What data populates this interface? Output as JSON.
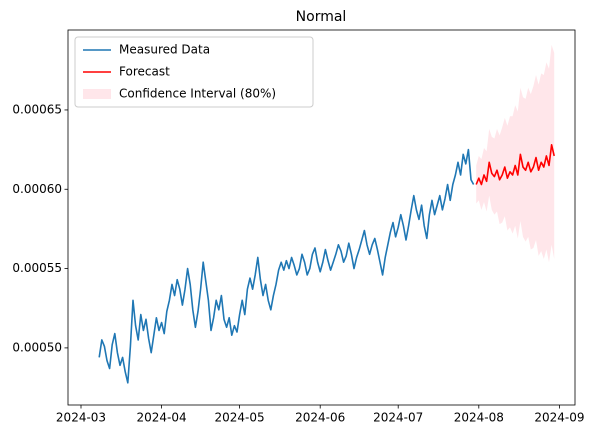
{
  "chart_data": {
    "type": "line",
    "title": "Normal",
    "xlim": [
      19778,
      19973
    ],
    "xticks": [
      {
        "value": 19783,
        "label": "2024-03"
      },
      {
        "value": 19814,
        "label": "2024-04"
      },
      {
        "value": 19844,
        "label": "2024-05"
      },
      {
        "value": 19875,
        "label": "2024-06"
      },
      {
        "value": 19905,
        "label": "2024-07"
      },
      {
        "value": 19936,
        "label": "2024-08"
      },
      {
        "value": 19967,
        "label": "2024-09"
      }
    ],
    "ylim": [
      0.000464,
      0.0007004
    ],
    "yticks": [
      {
        "value": 0.0005,
        "label": "0.00050"
      },
      {
        "value": 0.00055,
        "label": "0.00055"
      },
      {
        "value": 0.0006,
        "label": "0.00060"
      },
      {
        "value": 0.00065,
        "label": "0.00065"
      }
    ],
    "legend": "upper left",
    "series": [
      {
        "name": "Measured Data",
        "color": "#1f77b4",
        "x": [
          19790,
          19791,
          19792,
          19793,
          19794,
          19795,
          19796,
          19797,
          19798,
          19799,
          19800,
          19801,
          19802,
          19803,
          19804,
          19805,
          19806,
          19807,
          19808,
          19809,
          19810,
          19811,
          19812,
          19813,
          19814,
          19815,
          19816,
          19817,
          19818,
          19819,
          19820,
          19821,
          19822,
          19823,
          19824,
          19825,
          19826,
          19827,
          19828,
          19829,
          19830,
          19831,
          19832,
          19833,
          19834,
          19835,
          19836,
          19837,
          19838,
          19839,
          19840,
          19841,
          19842,
          19843,
          19844,
          19845,
          19846,
          19847,
          19848,
          19849,
          19850,
          19851,
          19852,
          19853,
          19854,
          19855,
          19856,
          19857,
          19858,
          19859,
          19860,
          19861,
          19862,
          19863,
          19864,
          19865,
          19866,
          19867,
          19868,
          19869,
          19870,
          19871,
          19872,
          19873,
          19874,
          19875,
          19876,
          19877,
          19878,
          19879,
          19880,
          19881,
          19882,
          19883,
          19884,
          19885,
          19886,
          19887,
          19888,
          19889,
          19890,
          19891,
          19892,
          19893,
          19894,
          19895,
          19896,
          19897,
          19898,
          19899,
          19900,
          19901,
          19902,
          19903,
          19904,
          19905,
          19906,
          19907,
          19908,
          19909,
          19910,
          19911,
          19912,
          19913,
          19914,
          19915,
          19916,
          19917,
          19918,
          19919,
          19920,
          19921,
          19922,
          19923,
          19924,
          19925,
          19926,
          19927,
          19928,
          19929,
          19930,
          19931,
          19932,
          19933,
          19934
        ],
        "values": [
          0.000494,
          0.000505,
          0.000501,
          0.000492,
          0.000487,
          0.000502,
          0.000509,
          0.000497,
          0.000489,
          0.000494,
          0.000485,
          0.000478,
          0.000501,
          0.00053,
          0.000514,
          0.000505,
          0.000521,
          0.000511,
          0.000518,
          0.000506,
          0.000497,
          0.000508,
          0.000519,
          0.000511,
          0.000516,
          0.000509,
          0.000523,
          0.00053,
          0.00054,
          0.000533,
          0.000543,
          0.000537,
          0.000527,
          0.000537,
          0.00055,
          0.00054,
          0.000524,
          0.000513,
          0.000523,
          0.000537,
          0.000554,
          0.000542,
          0.00053,
          0.000511,
          0.000519,
          0.00053,
          0.000524,
          0.000533,
          0.000518,
          0.000513,
          0.000519,
          0.000508,
          0.000514,
          0.00051,
          0.000521,
          0.00053,
          0.000521,
          0.000537,
          0.000544,
          0.000537,
          0.000546,
          0.000557,
          0.000543,
          0.000533,
          0.00054,
          0.00053,
          0.000524,
          0.000533,
          0.00054,
          0.000549,
          0.000554,
          0.000549,
          0.000555,
          0.00055,
          0.000557,
          0.000552,
          0.000546,
          0.00055,
          0.000559,
          0.000554,
          0.000546,
          0.00055,
          0.000559,
          0.000563,
          0.000554,
          0.000548,
          0.000554,
          0.000562,
          0.000555,
          0.000549,
          0.000554,
          0.000559,
          0.000565,
          0.000561,
          0.000554,
          0.000558,
          0.000566,
          0.000559,
          0.00055,
          0.000557,
          0.000562,
          0.000568,
          0.000574,
          0.000565,
          0.000559,
          0.000565,
          0.000569,
          0.000562,
          0.000554,
          0.000546,
          0.000557,
          0.000565,
          0.000573,
          0.000579,
          0.00057,
          0.000576,
          0.000584,
          0.000577,
          0.000568,
          0.000577,
          0.000587,
          0.000596,
          0.000587,
          0.000581,
          0.00059,
          0.000577,
          0.000569,
          0.000584,
          0.000593,
          0.000584,
          0.00059,
          0.000596,
          0.000587,
          0.000594,
          0.000603,
          0.000593,
          0.000603,
          0.000609,
          0.000617,
          0.000609,
          0.000622,
          0.000616,
          0.000625,
          0.000606,
          0.000603
        ]
      },
      {
        "name": "Forecast",
        "color": "#ff0000",
        "x": [
          19935,
          19936,
          19937,
          19938,
          19939,
          19940,
          19941,
          19942,
          19943,
          19944,
          19945,
          19946,
          19947,
          19948,
          19949,
          19950,
          19951,
          19952,
          19953,
          19954,
          19955,
          19956,
          19957,
          19958,
          19959,
          19960,
          19961,
          19962,
          19963,
          19964,
          19965
        ],
        "values": [
          0.000603,
          0.000607,
          0.000603,
          0.000609,
          0.000605,
          0.000617,
          0.00061,
          0.000608,
          0.000612,
          0.000606,
          0.000609,
          0.000614,
          0.000607,
          0.000611,
          0.000609,
          0.000615,
          0.000609,
          0.000622,
          0.000614,
          0.000612,
          0.000617,
          0.000611,
          0.000614,
          0.00062,
          0.000612,
          0.000617,
          0.000614,
          0.000621,
          0.000615,
          0.000628,
          0.000621
        ]
      },
      {
        "name": "Confidence Interval (80%)",
        "color": "#ffc0cb",
        "x": [
          19935,
          19936,
          19937,
          19938,
          19939,
          19940,
          19941,
          19942,
          19943,
          19944,
          19945,
          19946,
          19947,
          19948,
          19949,
          19950,
          19951,
          19952,
          19953,
          19954,
          19955,
          19956,
          19957,
          19958,
          19959,
          19960,
          19961,
          19962,
          19963,
          19964,
          19965
        ],
        "lower": [
          0.000591,
          0.000593,
          0.000587,
          0.000592,
          0.000586,
          0.000596,
          0.000587,
          0.000584,
          0.000586,
          0.000578,
          0.000579,
          0.000583,
          0.000574,
          0.000576,
          0.000572,
          0.000577,
          0.000569,
          0.00058,
          0.00057,
          0.000567,
          0.00057,
          0.000562,
          0.000563,
          0.000568,
          0.000558,
          0.000561,
          0.000556,
          0.000562,
          0.000554,
          0.000565,
          0.000556
        ],
        "upper": [
          0.000615,
          0.000621,
          0.000619,
          0.000626,
          0.000624,
          0.000638,
          0.000633,
          0.000632,
          0.000638,
          0.000634,
          0.000639,
          0.000645,
          0.00064,
          0.000646,
          0.000646,
          0.000653,
          0.000649,
          0.000664,
          0.000658,
          0.000657,
          0.000664,
          0.00066,
          0.000665,
          0.000672,
          0.000666,
          0.000673,
          0.000672,
          0.00068,
          0.000676,
          0.000691,
          0.000686
        ]
      }
    ]
  }
}
